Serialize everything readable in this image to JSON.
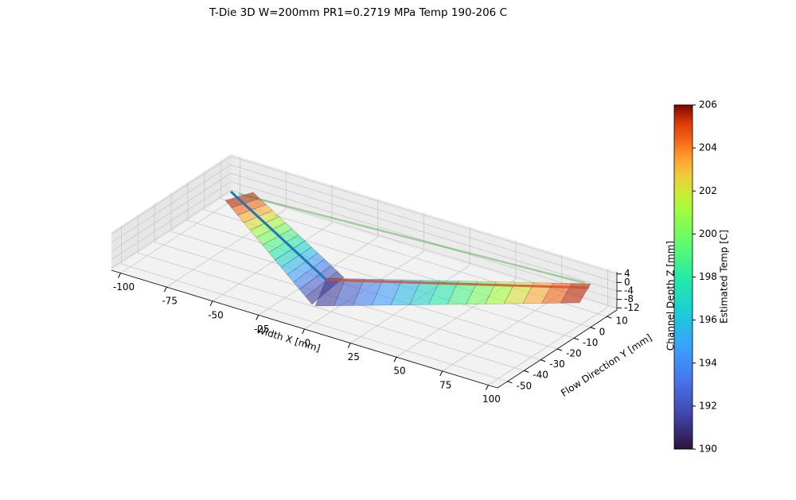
{
  "chart_data": {
    "type": "surface3d",
    "title": "T-Die 3D  W=200mm  PR1=0.2719 MPa  Temp 190-206 C",
    "xlabel": "Width X [mm]",
    "ylabel": "Flow Direction Y [mm]",
    "zlabel": "Channel Depth Z [mm]",
    "xlim": [
      -105,
      105
    ],
    "ylim": [
      -56,
      16
    ],
    "zlim": [
      -13,
      5
    ],
    "xticks": [
      -100,
      -75,
      -50,
      -25,
      0,
      25,
      50,
      75,
      100
    ],
    "yticks": [
      -50,
      -40,
      -30,
      -20,
      -10,
      0,
      10
    ],
    "zticks": [
      -12,
      -8,
      -4,
      0,
      4
    ],
    "grid": true,
    "cmap": "turbo",
    "colorbar": {
      "label": "Estimated Temp [C]",
      "lim": [
        190,
        206
      ],
      "ticks": [
        190,
        192,
        194,
        196,
        198,
        200,
        202,
        204,
        206
      ]
    }
  }
}
